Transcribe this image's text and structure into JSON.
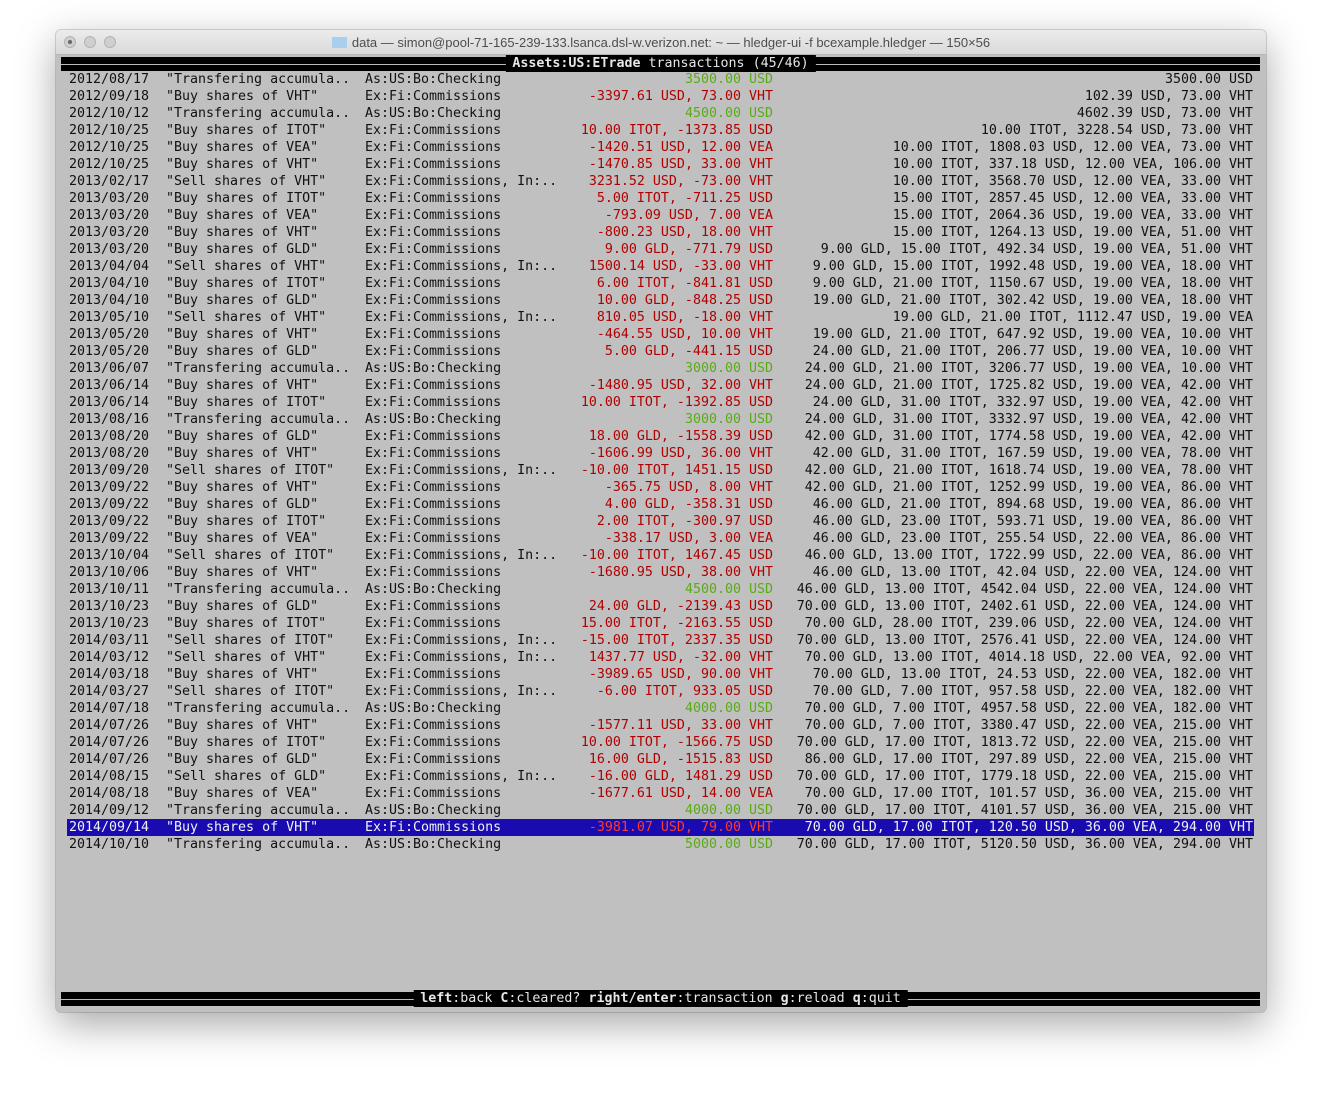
{
  "window": {
    "title": "data — simon@pool-71-165-239-133.lsanca.dsl-w.verizon.net: ~ — hledger-ui -f bcexample.hledger — 150×56"
  },
  "header": {
    "account": "Assets:US:ETrade",
    "suffix": "transactions",
    "position": "(45/46)"
  },
  "colors": {
    "background": "#c0c0c0",
    "positive": "#5aab14",
    "negative": "#b00000",
    "selection": "#1a0bb0"
  },
  "selected_index": 44,
  "rows": [
    {
      "date": "2012/08/17",
      "desc": "\"Transfering accumula..",
      "acct": "As:US:Bo:Checking",
      "amt": "3500.00 USD",
      "sign": "pos",
      "bal": "3500.00 USD"
    },
    {
      "date": "2012/09/18",
      "desc": "\"Buy shares of VHT\"",
      "acct": "Ex:Fi:Commissions",
      "amt": "-3397.61 USD, 73.00 VHT",
      "sign": "neg",
      "bal": "102.39 USD, 73.00 VHT"
    },
    {
      "date": "2012/10/12",
      "desc": "\"Transfering accumula..",
      "acct": "As:US:Bo:Checking",
      "amt": "4500.00 USD",
      "sign": "pos",
      "bal": "4602.39 USD, 73.00 VHT"
    },
    {
      "date": "2012/10/25",
      "desc": "\"Buy shares of ITOT\"",
      "acct": "Ex:Fi:Commissions",
      "amt": "10.00 ITOT, -1373.85 USD",
      "sign": "neg",
      "bal": "10.00 ITOT, 3228.54 USD, 73.00 VHT"
    },
    {
      "date": "2012/10/25",
      "desc": "\"Buy shares of VEA\"",
      "acct": "Ex:Fi:Commissions",
      "amt": "-1420.51 USD, 12.00 VEA",
      "sign": "neg",
      "bal": "10.00 ITOT, 1808.03 USD, 12.00 VEA, 73.00 VHT"
    },
    {
      "date": "2012/10/25",
      "desc": "\"Buy shares of VHT\"",
      "acct": "Ex:Fi:Commissions",
      "amt": "-1470.85 USD, 33.00 VHT",
      "sign": "neg",
      "bal": "10.00 ITOT, 337.18 USD, 12.00 VEA, 106.00 VHT"
    },
    {
      "date": "2013/02/17",
      "desc": "\"Sell shares of VHT\"",
      "acct": "Ex:Fi:Commissions, In:..",
      "amt": "3231.52 USD, -73.00 VHT",
      "sign": "neg",
      "bal": "10.00 ITOT, 3568.70 USD, 12.00 VEA, 33.00 VHT"
    },
    {
      "date": "2013/03/20",
      "desc": "\"Buy shares of ITOT\"",
      "acct": "Ex:Fi:Commissions",
      "amt": "5.00 ITOT, -711.25 USD",
      "sign": "neg",
      "bal": "15.00 ITOT, 2857.45 USD, 12.00 VEA, 33.00 VHT"
    },
    {
      "date": "2013/03/20",
      "desc": "\"Buy shares of VEA\"",
      "acct": "Ex:Fi:Commissions",
      "amt": "-793.09 USD, 7.00 VEA",
      "sign": "neg",
      "bal": "15.00 ITOT, 2064.36 USD, 19.00 VEA, 33.00 VHT"
    },
    {
      "date": "2013/03/20",
      "desc": "\"Buy shares of VHT\"",
      "acct": "Ex:Fi:Commissions",
      "amt": "-800.23 USD, 18.00 VHT",
      "sign": "neg",
      "bal": "15.00 ITOT, 1264.13 USD, 19.00 VEA, 51.00 VHT"
    },
    {
      "date": "2013/03/20",
      "desc": "\"Buy shares of GLD\"",
      "acct": "Ex:Fi:Commissions",
      "amt": "9.00 GLD, -771.79 USD",
      "sign": "neg",
      "bal": "9.00 GLD, 15.00 ITOT, 492.34 USD, 19.00 VEA, 51.00 VHT"
    },
    {
      "date": "2013/04/04",
      "desc": "\"Sell shares of VHT\"",
      "acct": "Ex:Fi:Commissions, In:..",
      "amt": "1500.14 USD, -33.00 VHT",
      "sign": "neg",
      "bal": "9.00 GLD, 15.00 ITOT, 1992.48 USD, 19.00 VEA, 18.00 VHT"
    },
    {
      "date": "2013/04/10",
      "desc": "\"Buy shares of ITOT\"",
      "acct": "Ex:Fi:Commissions",
      "amt": "6.00 ITOT, -841.81 USD",
      "sign": "neg",
      "bal": "9.00 GLD, 21.00 ITOT, 1150.67 USD, 19.00 VEA, 18.00 VHT"
    },
    {
      "date": "2013/04/10",
      "desc": "\"Buy shares of GLD\"",
      "acct": "Ex:Fi:Commissions",
      "amt": "10.00 GLD, -848.25 USD",
      "sign": "neg",
      "bal": "19.00 GLD, 21.00 ITOT, 302.42 USD, 19.00 VEA, 18.00 VHT"
    },
    {
      "date": "2013/05/10",
      "desc": "\"Sell shares of VHT\"",
      "acct": "Ex:Fi:Commissions, In:..",
      "amt": "810.05 USD, -18.00 VHT",
      "sign": "neg",
      "bal": "19.00 GLD, 21.00 ITOT, 1112.47 USD, 19.00 VEA"
    },
    {
      "date": "2013/05/20",
      "desc": "\"Buy shares of VHT\"",
      "acct": "Ex:Fi:Commissions",
      "amt": "-464.55 USD, 10.00 VHT",
      "sign": "neg",
      "bal": "19.00 GLD, 21.00 ITOT, 647.92 USD, 19.00 VEA, 10.00 VHT"
    },
    {
      "date": "2013/05/20",
      "desc": "\"Buy shares of GLD\"",
      "acct": "Ex:Fi:Commissions",
      "amt": "5.00 GLD, -441.15 USD",
      "sign": "neg",
      "bal": "24.00 GLD, 21.00 ITOT, 206.77 USD, 19.00 VEA, 10.00 VHT"
    },
    {
      "date": "2013/06/07",
      "desc": "\"Transfering accumula..",
      "acct": "As:US:Bo:Checking",
      "amt": "3000.00 USD",
      "sign": "pos",
      "bal": "24.00 GLD, 21.00 ITOT, 3206.77 USD, 19.00 VEA, 10.00 VHT"
    },
    {
      "date": "2013/06/14",
      "desc": "\"Buy shares of VHT\"",
      "acct": "Ex:Fi:Commissions",
      "amt": "-1480.95 USD, 32.00 VHT",
      "sign": "neg",
      "bal": "24.00 GLD, 21.00 ITOT, 1725.82 USD, 19.00 VEA, 42.00 VHT"
    },
    {
      "date": "2013/06/14",
      "desc": "\"Buy shares of ITOT\"",
      "acct": "Ex:Fi:Commissions",
      "amt": "10.00 ITOT, -1392.85 USD",
      "sign": "neg",
      "bal": "24.00 GLD, 31.00 ITOT, 332.97 USD, 19.00 VEA, 42.00 VHT"
    },
    {
      "date": "2013/08/16",
      "desc": "\"Transfering accumula..",
      "acct": "As:US:Bo:Checking",
      "amt": "3000.00 USD",
      "sign": "pos",
      "bal": "24.00 GLD, 31.00 ITOT, 3332.97 USD, 19.00 VEA, 42.00 VHT"
    },
    {
      "date": "2013/08/20",
      "desc": "\"Buy shares of GLD\"",
      "acct": "Ex:Fi:Commissions",
      "amt": "18.00 GLD, -1558.39 USD",
      "sign": "neg",
      "bal": "42.00 GLD, 31.00 ITOT, 1774.58 USD, 19.00 VEA, 42.00 VHT"
    },
    {
      "date": "2013/08/20",
      "desc": "\"Buy shares of VHT\"",
      "acct": "Ex:Fi:Commissions",
      "amt": "-1606.99 USD, 36.00 VHT",
      "sign": "neg",
      "bal": "42.00 GLD, 31.00 ITOT, 167.59 USD, 19.00 VEA, 78.00 VHT"
    },
    {
      "date": "2013/09/20",
      "desc": "\"Sell shares of ITOT\"",
      "acct": "Ex:Fi:Commissions, In:..",
      "amt": "-10.00 ITOT, 1451.15 USD",
      "sign": "neg",
      "bal": "42.00 GLD, 21.00 ITOT, 1618.74 USD, 19.00 VEA, 78.00 VHT"
    },
    {
      "date": "2013/09/22",
      "desc": "\"Buy shares of VHT\"",
      "acct": "Ex:Fi:Commissions",
      "amt": "-365.75 USD, 8.00 VHT",
      "sign": "neg",
      "bal": "42.00 GLD, 21.00 ITOT, 1252.99 USD, 19.00 VEA, 86.00 VHT"
    },
    {
      "date": "2013/09/22",
      "desc": "\"Buy shares of GLD\"",
      "acct": "Ex:Fi:Commissions",
      "amt": "4.00 GLD, -358.31 USD",
      "sign": "neg",
      "bal": "46.00 GLD, 21.00 ITOT, 894.68 USD, 19.00 VEA, 86.00 VHT"
    },
    {
      "date": "2013/09/22",
      "desc": "\"Buy shares of ITOT\"",
      "acct": "Ex:Fi:Commissions",
      "amt": "2.00 ITOT, -300.97 USD",
      "sign": "neg",
      "bal": "46.00 GLD, 23.00 ITOT, 593.71 USD, 19.00 VEA, 86.00 VHT"
    },
    {
      "date": "2013/09/22",
      "desc": "\"Buy shares of VEA\"",
      "acct": "Ex:Fi:Commissions",
      "amt": "-338.17 USD, 3.00 VEA",
      "sign": "neg",
      "bal": "46.00 GLD, 23.00 ITOT, 255.54 USD, 22.00 VEA, 86.00 VHT"
    },
    {
      "date": "2013/10/04",
      "desc": "\"Sell shares of ITOT\"",
      "acct": "Ex:Fi:Commissions, In:..",
      "amt": "-10.00 ITOT, 1467.45 USD",
      "sign": "neg",
      "bal": "46.00 GLD, 13.00 ITOT, 1722.99 USD, 22.00 VEA, 86.00 VHT"
    },
    {
      "date": "2013/10/06",
      "desc": "\"Buy shares of VHT\"",
      "acct": "Ex:Fi:Commissions",
      "amt": "-1680.95 USD, 38.00 VHT",
      "sign": "neg",
      "bal": "46.00 GLD, 13.00 ITOT, 42.04 USD, 22.00 VEA, 124.00 VHT"
    },
    {
      "date": "2013/10/11",
      "desc": "\"Transfering accumula..",
      "acct": "As:US:Bo:Checking",
      "amt": "4500.00 USD",
      "sign": "pos",
      "bal": "46.00 GLD, 13.00 ITOT, 4542.04 USD, 22.00 VEA, 124.00 VHT"
    },
    {
      "date": "2013/10/23",
      "desc": "\"Buy shares of GLD\"",
      "acct": "Ex:Fi:Commissions",
      "amt": "24.00 GLD, -2139.43 USD",
      "sign": "neg",
      "bal": "70.00 GLD, 13.00 ITOT, 2402.61 USD, 22.00 VEA, 124.00 VHT"
    },
    {
      "date": "2013/10/23",
      "desc": "\"Buy shares of ITOT\"",
      "acct": "Ex:Fi:Commissions",
      "amt": "15.00 ITOT, -2163.55 USD",
      "sign": "neg",
      "bal": "70.00 GLD, 28.00 ITOT, 239.06 USD, 22.00 VEA, 124.00 VHT"
    },
    {
      "date": "2014/03/11",
      "desc": "\"Sell shares of ITOT\"",
      "acct": "Ex:Fi:Commissions, In:..",
      "amt": "-15.00 ITOT, 2337.35 USD",
      "sign": "neg",
      "bal": "70.00 GLD, 13.00 ITOT, 2576.41 USD, 22.00 VEA, 124.00 VHT"
    },
    {
      "date": "2014/03/12",
      "desc": "\"Sell shares of VHT\"",
      "acct": "Ex:Fi:Commissions, In:..",
      "amt": "1437.77 USD, -32.00 VHT",
      "sign": "neg",
      "bal": "70.00 GLD, 13.00 ITOT, 4014.18 USD, 22.00 VEA, 92.00 VHT"
    },
    {
      "date": "2014/03/18",
      "desc": "\"Buy shares of VHT\"",
      "acct": "Ex:Fi:Commissions",
      "amt": "-3989.65 USD, 90.00 VHT",
      "sign": "neg",
      "bal": "70.00 GLD, 13.00 ITOT, 24.53 USD, 22.00 VEA, 182.00 VHT"
    },
    {
      "date": "2014/03/27",
      "desc": "\"Sell shares of ITOT\"",
      "acct": "Ex:Fi:Commissions, In:..",
      "amt": "-6.00 ITOT, 933.05 USD",
      "sign": "neg",
      "bal": "70.00 GLD, 7.00 ITOT, 957.58 USD, 22.00 VEA, 182.00 VHT"
    },
    {
      "date": "2014/07/18",
      "desc": "\"Transfering accumula..",
      "acct": "As:US:Bo:Checking",
      "amt": "4000.00 USD",
      "sign": "pos",
      "bal": "70.00 GLD, 7.00 ITOT, 4957.58 USD, 22.00 VEA, 182.00 VHT"
    },
    {
      "date": "2014/07/26",
      "desc": "\"Buy shares of VHT\"",
      "acct": "Ex:Fi:Commissions",
      "amt": "-1577.11 USD, 33.00 VHT",
      "sign": "neg",
      "bal": "70.00 GLD, 7.00 ITOT, 3380.47 USD, 22.00 VEA, 215.00 VHT"
    },
    {
      "date": "2014/07/26",
      "desc": "\"Buy shares of ITOT\"",
      "acct": "Ex:Fi:Commissions",
      "amt": "10.00 ITOT, -1566.75 USD",
      "sign": "neg",
      "bal": "70.00 GLD, 17.00 ITOT, 1813.72 USD, 22.00 VEA, 215.00 VHT"
    },
    {
      "date": "2014/07/26",
      "desc": "\"Buy shares of GLD\"",
      "acct": "Ex:Fi:Commissions",
      "amt": "16.00 GLD, -1515.83 USD",
      "sign": "neg",
      "bal": "86.00 GLD, 17.00 ITOT, 297.89 USD, 22.00 VEA, 215.00 VHT"
    },
    {
      "date": "2014/08/15",
      "desc": "\"Sell shares of GLD\"",
      "acct": "Ex:Fi:Commissions, In:..",
      "amt": "-16.00 GLD, 1481.29 USD",
      "sign": "neg",
      "bal": "70.00 GLD, 17.00 ITOT, 1779.18 USD, 22.00 VEA, 215.00 VHT"
    },
    {
      "date": "2014/08/18",
      "desc": "\"Buy shares of VEA\"",
      "acct": "Ex:Fi:Commissions",
      "amt": "-1677.61 USD, 14.00 VEA",
      "sign": "neg",
      "bal": "70.00 GLD, 17.00 ITOT, 101.57 USD, 36.00 VEA, 215.00 VHT"
    },
    {
      "date": "2014/09/12",
      "desc": "\"Transfering accumula..",
      "acct": "As:US:Bo:Checking",
      "amt": "4000.00 USD",
      "sign": "pos",
      "bal": "70.00 GLD, 17.00 ITOT, 4101.57 USD, 36.00 VEA, 215.00 VHT"
    },
    {
      "date": "2014/09/14",
      "desc": "\"Buy shares of VHT\"",
      "acct": "Ex:Fi:Commissions",
      "amt": "-3981.07 USD, 79.00 VHT",
      "sign": "neg",
      "bal": "70.00 GLD, 17.00 ITOT, 120.50 USD, 36.00 VEA, 294.00 VHT"
    },
    {
      "date": "2014/10/10",
      "desc": "\"Transfering accumula..",
      "acct": "As:US:Bo:Checking",
      "amt": "5000.00 USD",
      "sign": "pos",
      "bal": "70.00 GLD, 17.00 ITOT, 5120.50 USD, 36.00 VEA, 294.00 VHT"
    }
  ],
  "footer": {
    "keys": [
      {
        "key": "left",
        "action": "back"
      },
      {
        "key": "C",
        "action": "cleared?"
      },
      {
        "key": "right/enter",
        "action": "transaction"
      },
      {
        "key": "g",
        "action": "reload"
      },
      {
        "key": "q",
        "action": "quit"
      }
    ]
  }
}
